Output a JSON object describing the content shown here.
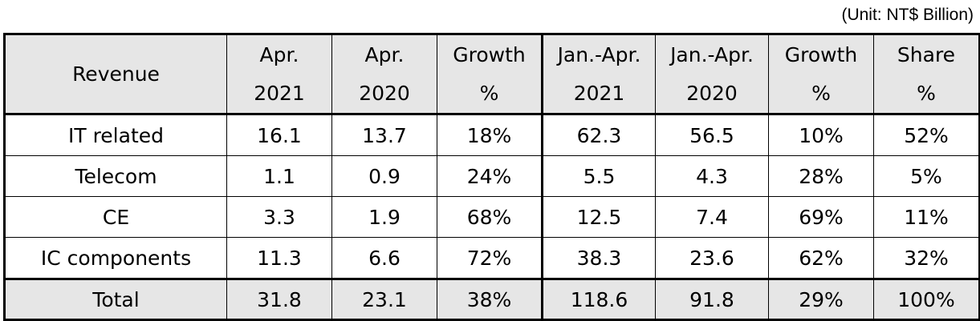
{
  "unit_note": "(Unit: NT$ Billion)",
  "table": {
    "headers": [
      {
        "line1": "Revenue",
        "line2": ""
      },
      {
        "line1": "Apr.",
        "line2": "2021"
      },
      {
        "line1": "Apr.",
        "line2": "2020"
      },
      {
        "line1": "Growth",
        "line2": "%"
      },
      {
        "line1": "Jan.-Apr.",
        "line2": "2021"
      },
      {
        "line1": "Jan.-Apr.",
        "line2": "2020"
      },
      {
        "line1": "Growth",
        "line2": "%"
      },
      {
        "line1": "Share",
        "line2": "%"
      }
    ],
    "rows": [
      {
        "label": "IT related",
        "cells": [
          "16.1",
          "13.7",
          "18%",
          "62.3",
          "56.5",
          "10%",
          "52%"
        ]
      },
      {
        "label": "Telecom",
        "cells": [
          "1.1",
          "0.9",
          "24%",
          "5.5",
          "4.3",
          "28%",
          "5%"
        ]
      },
      {
        "label": "CE",
        "cells": [
          "3.3",
          "1.9",
          "68%",
          "12.5",
          "7.4",
          "69%",
          "11%"
        ]
      },
      {
        "label": "IC components",
        "cells": [
          "11.3",
          "6.6",
          "72%",
          "38.3",
          "23.6",
          "62%",
          "32%"
        ]
      }
    ],
    "total": {
      "label": "Total",
      "cells": [
        "31.8",
        "23.1",
        "38%",
        "118.6",
        "91.8",
        "29%",
        "100%"
      ]
    }
  }
}
